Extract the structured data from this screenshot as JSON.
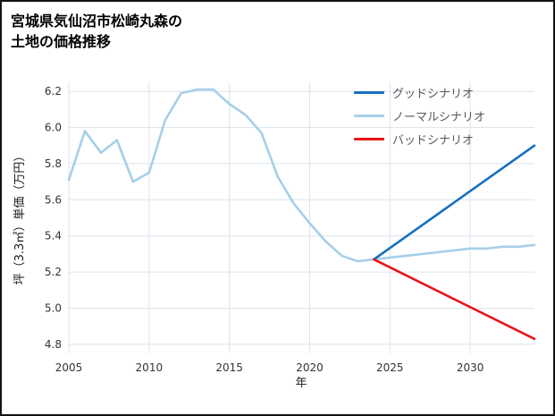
{
  "page": {
    "title_line1": "宮城県気仙沼市松崎丸森の",
    "title_line2": "土地の価格推移"
  },
  "chart_data": {
    "type": "line",
    "title": "宮城県気仙沼市松崎丸森の土地の価格推移",
    "xlabel": "年",
    "ylabel": "坪（3.3㎡）単価（万円）",
    "xlim": [
      2005,
      2034
    ],
    "ylim": [
      4.75,
      6.25
    ],
    "x_ticks": [
      2005,
      2010,
      2015,
      2020,
      2025,
      2030
    ],
    "y_ticks": [
      4.8,
      5.0,
      5.2,
      5.4,
      5.6,
      5.8,
      6.0,
      6.2
    ],
    "grid": true,
    "legend_position": "upper right",
    "colors": {
      "good": "#1570bf",
      "normal": "#a6cfe8",
      "bad": "#e81416",
      "grid": "#dce4ed",
      "tick_text": "#333333",
      "legend_text": "#595959"
    },
    "series": [
      {
        "name": "グッドシナリオ",
        "color": "#1570bf",
        "x": [
          2024,
          2034
        ],
        "values": [
          5.27,
          5.9
        ]
      },
      {
        "name": "ノーマルシナリオ",
        "color": "#a6cfe8",
        "x": [
          2005,
          2006,
          2007,
          2008,
          2009,
          2010,
          2011,
          2012,
          2013,
          2014,
          2015,
          2016,
          2017,
          2018,
          2019,
          2020,
          2021,
          2022,
          2023,
          2024,
          2025,
          2026,
          2027,
          2028,
          2029,
          2030,
          2031,
          2032,
          2033,
          2034
        ],
        "values": [
          5.71,
          5.98,
          5.86,
          5.93,
          5.7,
          5.75,
          6.04,
          6.19,
          6.21,
          6.21,
          6.13,
          6.07,
          5.97,
          5.73,
          5.58,
          5.47,
          5.37,
          5.29,
          5.26,
          5.27,
          5.28,
          5.29,
          5.3,
          5.31,
          5.32,
          5.33,
          5.33,
          5.34,
          5.34,
          5.35
        ]
      },
      {
        "name": "バッドシナリオ",
        "color": "#e81416",
        "x": [
          2024,
          2034
        ],
        "values": [
          5.27,
          4.83
        ]
      }
    ]
  }
}
